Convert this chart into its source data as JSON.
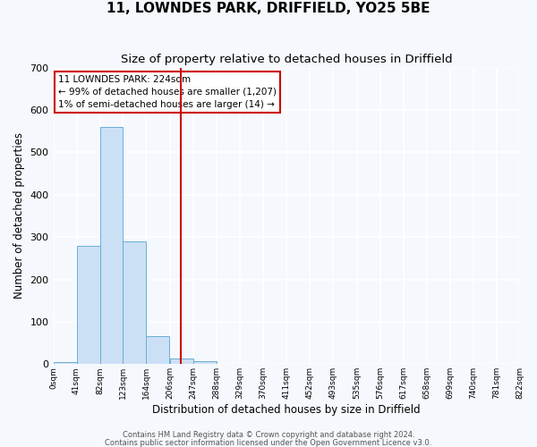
{
  "title": "11, LOWNDES PARK, DRIFFIELD, YO25 5BE",
  "subtitle": "Size of property relative to detached houses in Driffield",
  "xlabel": "Distribution of detached houses by size in Driffield",
  "ylabel": "Number of detached properties",
  "bin_edges": [
    0,
    41,
    82,
    123,
    164,
    206,
    247,
    288,
    329,
    370,
    411,
    452,
    493,
    535,
    576,
    617,
    658,
    699,
    740,
    781,
    822
  ],
  "bar_heights": [
    5,
    280,
    560,
    290,
    67,
    14,
    8,
    0,
    0,
    0,
    0,
    0,
    0,
    0,
    0,
    0,
    0,
    0,
    0,
    0
  ],
  "bar_color": "#cce0f5",
  "bar_edgecolor": "#6baed6",
  "vline_x": 224,
  "vline_color": "#cc0000",
  "ylim": [
    0,
    700
  ],
  "yticks": [
    0,
    100,
    200,
    300,
    400,
    500,
    600,
    700
  ],
  "annotation_line1": "11 LOWNDES PARK: 224sqm",
  "annotation_line2": "← 99% of detached houses are smaller (1,207)",
  "annotation_line3": "1% of semi-detached houses are larger (14) →",
  "annotation_box_edgecolor": "#cc0000",
  "annotation_box_facecolor": "white",
  "footer_line1": "Contains HM Land Registry data © Crown copyright and database right 2024.",
  "footer_line2": "Contains public sector information licensed under the Open Government Licence v3.0.",
  "plot_bg_color": "#f5f8fc",
  "fig_bg_color": "#f5f8fc",
  "grid_color": "white",
  "title_fontsize": 11,
  "subtitle_fontsize": 9.5,
  "tick_labels": [
    "0sqm",
    "41sqm",
    "82sqm",
    "123sqm",
    "164sqm",
    "206sqm",
    "247sqm",
    "288sqm",
    "329sqm",
    "370sqm",
    "411sqm",
    "452sqm",
    "493sqm",
    "535sqm",
    "576sqm",
    "617sqm",
    "658sqm",
    "699sqm",
    "740sqm",
    "781sqm",
    "822sqm"
  ]
}
